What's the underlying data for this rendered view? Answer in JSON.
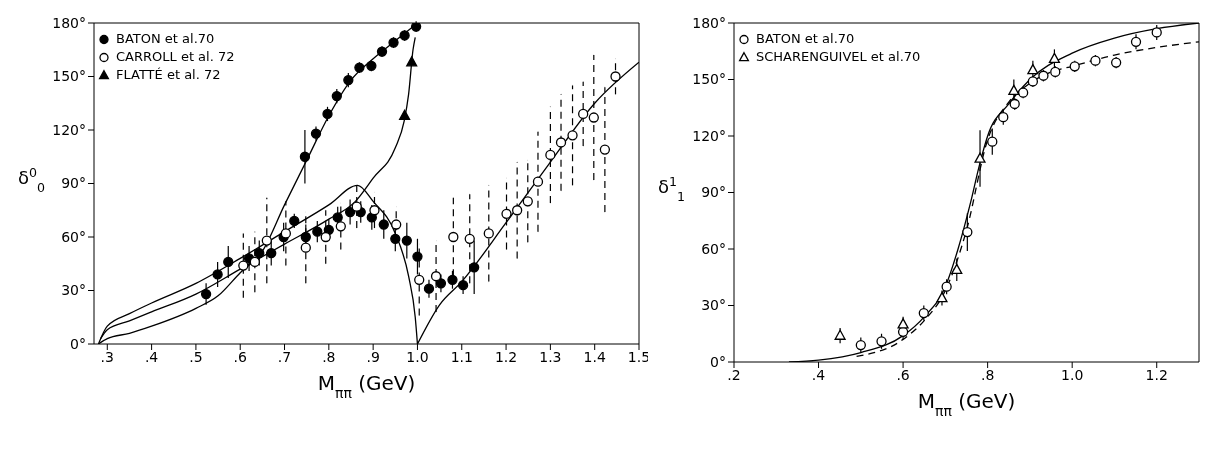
{
  "chart_data": [
    {
      "type": "scatter",
      "xlabel": "M$_{ππ}$ (GeV)",
      "ylabel": "δ$^{0}$$_{0}$",
      "xlim": [
        0.27,
        1.5
      ],
      "ylim": [
        0,
        180
      ],
      "xticks": [
        {
          "value": 0.3,
          "label": ".3"
        },
        {
          "value": 0.4,
          "label": ".4"
        },
        {
          "value": 0.5,
          "label": ".5"
        },
        {
          "value": 0.6,
          "label": ".6"
        },
        {
          "value": 0.7,
          "label": ".7"
        },
        {
          "value": 0.8,
          "label": ".8"
        },
        {
          "value": 0.9,
          "label": ".9"
        },
        {
          "value": 1.0,
          "label": "1.0"
        },
        {
          "value": 1.1,
          "label": "1.1"
        },
        {
          "value": 1.2,
          "label": "1.2"
        },
        {
          "value": 1.3,
          "label": "1.3"
        },
        {
          "value": 1.4,
          "label": "1.4"
        },
        {
          "value": 1.5,
          "label": "1.5"
        }
      ],
      "yticks": [
        {
          "value": 0,
          "label": "0°"
        },
        {
          "value": 30,
          "label": "30°"
        },
        {
          "value": 60,
          "label": "60°"
        },
        {
          "value": 90,
          "label": "90°"
        },
        {
          "value": 120,
          "label": "120°"
        },
        {
          "value": 150,
          "label": "150°"
        },
        {
          "value": 180,
          "label": "180°"
        }
      ],
      "grid": false,
      "legend": "top left",
      "series": [
        {
          "name": "BATON et al.70",
          "color": "#000000",
          "marker": "circle",
          "x": [
            0.523,
            0.549,
            0.573,
            0.62,
            0.643,
            0.67,
            0.698,
            0.722,
            0.748,
            0.774,
            0.8,
            0.82,
            0.848,
            0.872,
            0.897,
            0.924,
            0.95,
            0.976,
            1.0,
            1.026,
            1.053,
            1.079,
            1.103,
            1.128,
            0.746,
            0.771,
            0.797,
            0.818,
            0.844,
            0.869,
            0.896,
            0.92,
            0.946,
            0.971,
            0.997
          ],
          "values": [
            28,
            39,
            46,
            48,
            51,
            51,
            60,
            69,
            60,
            63,
            64,
            71,
            74,
            74,
            71,
            67,
            59,
            58,
            49,
            31,
            34,
            36,
            33,
            43,
            105,
            118,
            129,
            139,
            148,
            155,
            156,
            164,
            169,
            173,
            178
          ],
          "errors": [
            6,
            7,
            9,
            7,
            7,
            7,
            8,
            4,
            7,
            6,
            6,
            6,
            7,
            6,
            7,
            8,
            7,
            10,
            10,
            5,
            5,
            5,
            5,
            15,
            15,
            4,
            4,
            4,
            4,
            3,
            3,
            3,
            3,
            3,
            3
          ]
        },
        {
          "name": "CARROLL et al. 72",
          "color": "#000000",
          "marker": "circle",
          "line_style": "dashed",
          "x": [
            0.607,
            0.633,
            0.66,
            0.703,
            0.748,
            0.793,
            0.827,
            0.863,
            0.903,
            0.952,
            1.004,
            1.042,
            1.081,
            1.118,
            1.161,
            1.201,
            1.225,
            1.249,
            1.272,
            1.3,
            1.324,
            1.35,
            1.374,
            1.398,
            1.423,
            1.447
          ],
          "values": [
            44,
            46,
            58,
            62,
            54,
            60,
            66,
            77,
            75,
            67,
            36,
            38,
            60,
            59,
            62,
            73,
            75,
            80,
            91,
            106,
            113,
            117,
            129,
            127,
            109,
            150
          ],
          "errors": [
            18,
            17,
            24,
            18,
            20,
            15,
            13,
            12,
            10,
            10,
            20,
            20,
            22,
            25,
            27,
            20,
            27,
            23,
            28,
            27,
            27,
            28,
            18,
            35,
            35,
            10
          ]
        },
        {
          "name": "FLATTÉ et al. 72",
          "color": "#000000",
          "marker": "triangle",
          "x": [
            0.971,
            0.987
          ],
          "values": [
            128,
            158
          ]
        },
        {
          "type": "line",
          "color": "#000000",
          "x": [
            0.28,
            0.3,
            0.35,
            0.4,
            0.5,
            0.55,
            0.6,
            0.65,
            0.7,
            0.75,
            0.8,
            0.85,
            0.9,
            0.95,
            1.0
          ],
          "values": [
            0,
            3,
            6,
            10,
            20,
            27,
            40,
            52,
            78,
            103,
            128,
            148,
            160,
            170,
            180
          ]
        },
        {
          "type": "line",
          "color": "#000000",
          "x": [
            0.285,
            0.3,
            0.35,
            0.4,
            0.5,
            0.6,
            0.7,
            0.8,
            0.86,
            0.9,
            0.95,
            0.97,
            0.98,
            0.99,
            0.995
          ],
          "values": [
            3,
            8,
            13,
            18,
            28,
            42,
            56,
            70,
            80,
            93,
            110,
            125,
            140,
            165,
            172
          ]
        },
        {
          "type": "line",
          "color": "#000000",
          "x": [
            0.28,
            0.3,
            0.35,
            0.4,
            0.5,
            0.6,
            0.7,
            0.8,
            0.865,
            0.9,
            0.95,
            0.98,
            0.995,
            1.0
          ],
          "values": [
            0,
            10,
            17,
            23,
            34,
            48,
            63,
            78,
            89,
            80,
            62,
            38,
            15,
            0
          ]
        },
        {
          "type": "line",
          "color": "#000000",
          "x": [
            1.0,
            1.05,
            1.1,
            1.2,
            1.3,
            1.4,
            1.5
          ],
          "values": [
            0,
            22,
            35,
            68,
            102,
            135,
            158
          ]
        }
      ]
    },
    {
      "type": "scatter",
      "xlabel": "M$_{ππ}$ (GeV)",
      "ylabel": "δ$^{1}$$_{1}$",
      "xlim": [
        0.2,
        1.3
      ],
      "ylim": [
        0,
        180
      ],
      "xticks": [
        {
          "value": 0.2,
          "label": ".2"
        },
        {
          "value": 0.4,
          "label": ".4"
        },
        {
          "value": 0.6,
          "label": ".6"
        },
        {
          "value": 0.8,
          "label": ".8"
        },
        {
          "value": 1.0,
          "label": "1.0"
        },
        {
          "value": 1.2,
          "label": "1.2"
        }
      ],
      "yticks": [
        {
          "value": 0,
          "label": "0°"
        },
        {
          "value": 30,
          "label": "30°"
        },
        {
          "value": 60,
          "label": "60°"
        },
        {
          "value": 90,
          "label": "90°"
        },
        {
          "value": 120,
          "label": "120°"
        },
        {
          "value": 150,
          "label": "150°"
        },
        {
          "value": 180,
          "label": "180°"
        }
      ],
      "grid": false,
      "legend": "top left",
      "series": [
        {
          "name": "BATON et al.70",
          "color": "#000000",
          "marker": "circle",
          "x": [
            0.5,
            0.549,
            0.6,
            0.649,
            0.703,
            0.752,
            0.811,
            0.837,
            0.864,
            0.884,
            0.907,
            0.932,
            0.96,
            1.006,
            1.055,
            1.104,
            1.151,
            1.2
          ],
          "values": [
            9,
            11,
            16,
            26,
            40,
            69,
            117,
            130,
            137,
            143,
            149,
            152,
            154,
            157,
            160,
            159,
            170,
            175
          ],
          "errors": [
            4,
            4,
            4,
            4,
            4,
            10,
            7,
            4,
            3,
            3,
            3,
            3,
            3,
            3,
            3,
            3,
            4,
            4
          ]
        },
        {
          "name": "SCHARENGUIVEL et al.70",
          "color": "#000000",
          "marker": "triangle",
          "x": [
            0.451,
            0.6,
            0.692,
            0.727,
            0.782,
            0.862,
            0.907,
            0.958
          ],
          "values": [
            14,
            20,
            34,
            49,
            108,
            144,
            155,
            161
          ],
          "errors": [
            4,
            4,
            4,
            6,
            15,
            6,
            5,
            5
          ]
        },
        {
          "type": "line",
          "color": "#000000",
          "x": [
            0.33,
            0.4,
            0.5,
            0.6,
            0.65,
            0.7,
            0.73,
            0.76,
            0.78,
            0.8,
            0.85,
            0.9,
            1.0,
            1.1,
            1.2,
            1.3
          ],
          "values": [
            0,
            1,
            5,
            14,
            24,
            40,
            60,
            85,
            104,
            120,
            137,
            150,
            164,
            172,
            177,
            180
          ]
        },
        {
          "type": "line",
          "color": "#000000",
          "line_style": "dashed",
          "x": [
            0.49,
            0.6,
            0.65,
            0.7,
            0.75,
            0.8,
            0.85,
            0.9,
            0.95,
            1.0,
            1.1,
            1.2,
            1.3
          ],
          "values": [
            3,
            12,
            22,
            38,
            70,
            118,
            138,
            148,
            154,
            157,
            163,
            167,
            170
          ]
        }
      ]
    }
  ]
}
